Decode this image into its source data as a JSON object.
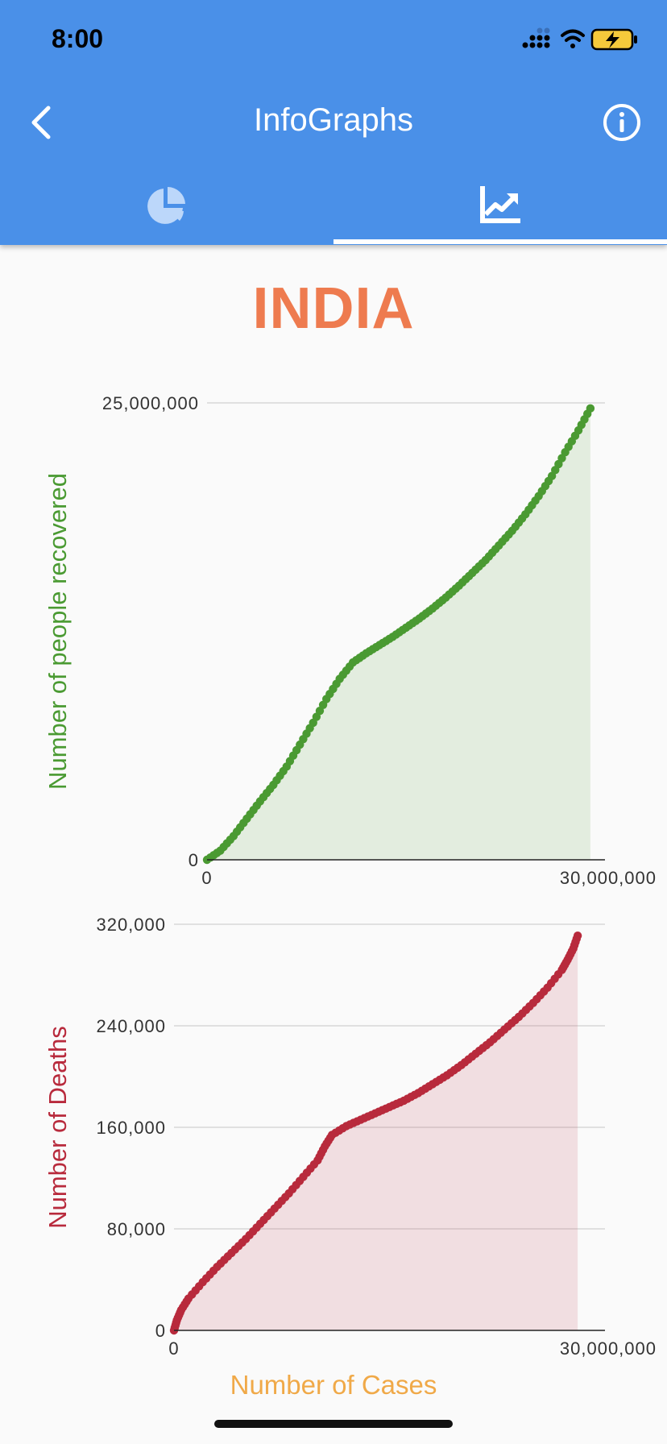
{
  "status_bar": {
    "time": "8:00"
  },
  "header": {
    "title": "InfoGraphs"
  },
  "country": "INDIA",
  "colors": {
    "appbar": "#4a90e8",
    "country": "#ee7b4f",
    "recovered": "#4a9a32",
    "deaths": "#b82a3c",
    "xlabel": "#f0a948"
  },
  "chart_data": [
    {
      "type": "area",
      "ylabel": "Number of people recovered",
      "xlabel": "",
      "xlim": [
        0,
        30000000
      ],
      "ylim": [
        0,
        25000000
      ],
      "x_ticks": [
        "0",
        "30,000,000"
      ],
      "y_ticks": [
        "0",
        "25,000,000"
      ],
      "grid": "horizontal",
      "color": "#4a9a32",
      "series": [
        {
          "x": [
            0,
            1000000,
            2000000,
            3000000,
            4000000,
            5000000,
            6000000,
            7000000,
            8000000,
            9000000,
            10000000,
            11000000,
            12000000,
            13000000,
            14000000,
            15000000,
            16000000,
            17000000,
            18000000,
            19000000,
            20000000,
            21000000,
            22000000,
            23000000,
            24000000,
            25000000,
            26000000,
            27000000,
            28000000,
            28900000
          ],
          "y": [
            0,
            500000,
            1300000,
            2250000,
            3200000,
            4100000,
            5100000,
            6300000,
            7500000,
            8800000,
            9900000,
            10800000,
            11300000,
            11750000,
            12200000,
            12700000,
            13200000,
            13750000,
            14350000,
            15000000,
            15700000,
            16400000,
            17200000,
            18000000,
            18900000,
            19900000,
            21000000,
            22300000,
            23500000,
            24700000
          ]
        }
      ]
    },
    {
      "type": "area",
      "ylabel": "Number of Deaths",
      "xlabel": "Number of Cases",
      "xlim": [
        0,
        30000000
      ],
      "ylim": [
        0,
        320000
      ],
      "x_ticks": [
        "0",
        "30,000,000"
      ],
      "y_ticks": [
        "0",
        "80,000",
        "160,000",
        "240,000",
        "320,000"
      ],
      "grid": "horizontal",
      "color": "#b82a3c",
      "series": [
        {
          "x": [
            0,
            200000,
            500000,
            1000000,
            2000000,
            3000000,
            4000000,
            5000000,
            6000000,
            7000000,
            8000000,
            9000000,
            10000000,
            10500000,
            11000000,
            12000000,
            13000000,
            14000000,
            15000000,
            16000000,
            17000000,
            18000000,
            19000000,
            20000000,
            21000000,
            22000000,
            23000000,
            24000000,
            25000000,
            26000000,
            27000000,
            27400000,
            27800000,
            28100000
          ],
          "y": [
            0,
            8000,
            16000,
            25000,
            38000,
            50000,
            61000,
            72000,
            84000,
            96000,
            108000,
            121000,
            134000,
            145000,
            154000,
            161000,
            166000,
            171000,
            176000,
            181000,
            187000,
            194000,
            201000,
            209000,
            218000,
            227000,
            237000,
            247000,
            258000,
            270000,
            284000,
            292000,
            301000,
            311000
          ]
        }
      ]
    }
  ]
}
